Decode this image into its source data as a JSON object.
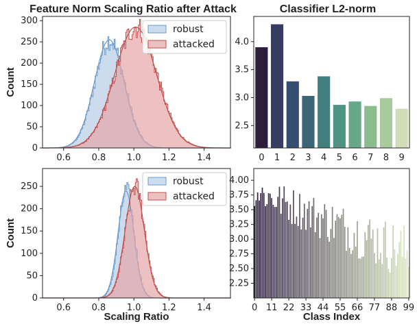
{
  "titles": {
    "left": "Feature Norm Scaling Ratio after Attack",
    "right": "Classifier L2-norm"
  },
  "chart_data": [
    {
      "type": "area",
      "panel": "top-left",
      "ylabel": "Count",
      "xlabel": "",
      "xlim": [
        0.48,
        1.55
      ],
      "ylim": [
        0,
        310
      ],
      "xticks": [
        0.6,
        0.8,
        1.0,
        1.2,
        1.4
      ],
      "yticks": [
        0,
        50,
        100,
        150,
        200,
        250,
        300
      ],
      "legend": "top-right",
      "series": [
        {
          "name": "robust",
          "color": "#b8cde6",
          "edge": "#6a9ac9",
          "dist": {
            "mean": 0.86,
            "sd": 0.085,
            "peak": 255
          }
        },
        {
          "name": "attacked",
          "color": "#e6a5a8",
          "edge": "#c0504d",
          "dist": {
            "mean": 1.01,
            "sd": 0.12,
            "peak": 285
          }
        }
      ]
    },
    {
      "type": "area",
      "panel": "bottom-left",
      "ylabel": "Count",
      "xlabel": "Scaling Ratio",
      "xlim": [
        0.48,
        1.55
      ],
      "ylim": [
        0,
        290
      ],
      "xticks": [
        0.6,
        0.8,
        1.0,
        1.2,
        1.4
      ],
      "yticks": [
        0,
        50,
        100,
        150,
        200,
        250
      ],
      "legend": "top-right",
      "series": [
        {
          "name": "robust",
          "color": "#b8cde6",
          "edge": "#6a9ac9",
          "dist": {
            "mean": 0.955,
            "sd": 0.045,
            "peak": 240
          }
        },
        {
          "name": "attacked",
          "color": "#e6a5a8",
          "edge": "#c0504d",
          "dist": {
            "mean": 1.005,
            "sd": 0.055,
            "peak": 250
          }
        }
      ]
    },
    {
      "type": "bar",
      "panel": "top-right",
      "xlabel": "",
      "ylabel": "",
      "categories": [
        "0",
        "1",
        "2",
        "3",
        "4",
        "5",
        "6",
        "7",
        "8",
        "9"
      ],
      "values": [
        3.9,
        4.31,
        3.29,
        3.03,
        3.38,
        2.87,
        2.93,
        2.85,
        2.99,
        2.8
      ],
      "ylim": [
        2.1,
        4.45
      ],
      "yticks": [
        2.5,
        3.0,
        3.5,
        4.0
      ],
      "colors": [
        "#2c1f3e",
        "#363c62",
        "#354f72",
        "#3a6678",
        "#41807f",
        "#4e9483",
        "#66a887",
        "#8bbc8d",
        "#a8ca9c",
        "#cfdcb5"
      ]
    },
    {
      "type": "bar",
      "panel": "bottom-right",
      "xlabel": "Class Index",
      "ylabel": "",
      "count": 100,
      "ylim": [
        2.0,
        4.2
      ],
      "yticks": [
        2.25,
        2.5,
        2.75,
        3.0,
        3.25,
        3.5,
        3.75,
        4.0
      ],
      "xticks": [
        0,
        11,
        22,
        33,
        44,
        55,
        66,
        77,
        88,
        99
      ],
      "range_start": [
        3.55,
        4.1
      ],
      "range_end": [
        2.25,
        3.25
      ],
      "color_start": "#2c1f3e",
      "color_end": "#dde9c2"
    }
  ]
}
